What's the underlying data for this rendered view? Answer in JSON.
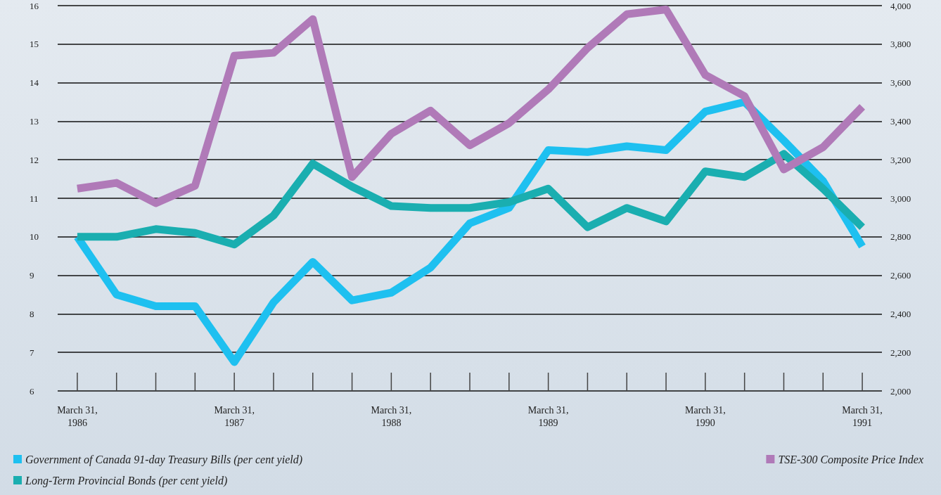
{
  "chart_data": {
    "type": "line",
    "categories": [
      "March 31,\n1986",
      null,
      null,
      null,
      "March 31,\n1987",
      null,
      null,
      null,
      "March 31,\n1988",
      null,
      null,
      null,
      "March 31,\n1989",
      null,
      null,
      null,
      "March 31,\n1990",
      null,
      null,
      null,
      "March 31,\n1991"
    ],
    "series": [
      {
        "name": "Government of Canada 91-day Treasury Bills (per cent yield)",
        "color": "#1ec0f0",
        "values": [
          10.0,
          8.5,
          8.2,
          8.2,
          6.75,
          8.3,
          9.35,
          8.35,
          8.55,
          9.2,
          10.35,
          10.75,
          12.25,
          12.2,
          12.35,
          12.25,
          13.25,
          13.5,
          12.5,
          11.45,
          9.75
        ]
      },
      {
        "name": "Long-Term Provincial Bonds (per cent yield)",
        "color": "#1aaeb0",
        "values": [
          10.0,
          10.0,
          10.2,
          10.1,
          9.8,
          10.55,
          11.9,
          11.3,
          10.8,
          10.75,
          10.75,
          10.9,
          11.25,
          10.25,
          10.75,
          10.4,
          11.7,
          11.55,
          12.15,
          11.25,
          10.25
        ]
      },
      {
        "name": "TSE-300 Composite Price Index",
        "color": "#b07ab8",
        "axis": "y2",
        "values": [
          3050,
          3080,
          2975,
          3065,
          3740,
          3755,
          3930,
          3110,
          3335,
          3455,
          3275,
          3390,
          3565,
          3780,
          3955,
          3980,
          3640,
          3530,
          3150,
          3265,
          3475
        ]
      }
    ],
    "ylim": [
      6,
      16
    ],
    "yticks": [
      6,
      7,
      8,
      9,
      10,
      11,
      12,
      13,
      14,
      15,
      16
    ],
    "y2lim": [
      2000,
      4000
    ],
    "y2ticks": [
      {
        "value": 2000,
        "label": "2,000"
      },
      {
        "value": 2200,
        "label": "2,200"
      },
      {
        "value": 2400,
        "label": "2,400"
      },
      {
        "value": 2600,
        "label": "2,600"
      },
      {
        "value": 2800,
        "label": "2,800"
      },
      {
        "value": 3000,
        "label": "3,000"
      },
      {
        "value": 3200,
        "label": "3,200"
      },
      {
        "value": 3400,
        "label": "3,400"
      },
      {
        "value": 3600,
        "label": "3,600"
      },
      {
        "value": 3800,
        "label": "3,800"
      },
      {
        "value": 4000,
        "label": "4,000"
      }
    ],
    "grid": "y",
    "legend": "bottom",
    "marker": "none",
    "line_style": "solid"
  }
}
